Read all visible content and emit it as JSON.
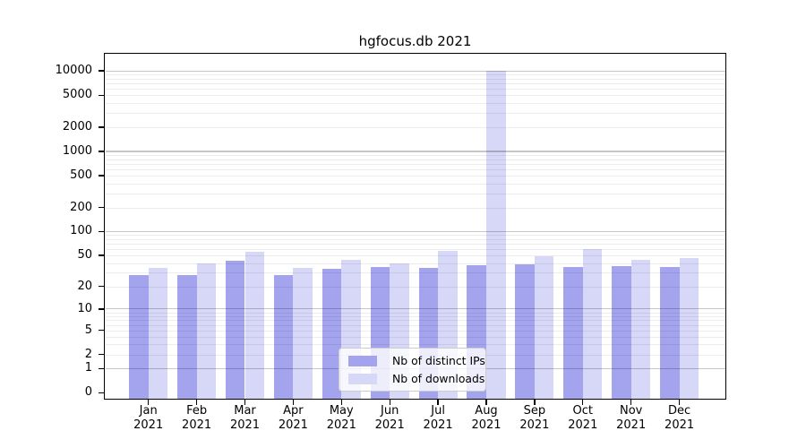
{
  "chart_data": {
    "type": "bar",
    "title": "hgfocus.db 2021",
    "year_label": "2021",
    "categories": [
      "Jan",
      "Feb",
      "Mar",
      "Apr",
      "May",
      "Jun",
      "Jul",
      "Aug",
      "Sep",
      "Oct",
      "Nov",
      "Dec"
    ],
    "series": [
      {
        "key": "distinct-ips",
        "name": "Nb of distinct IPs",
        "color": "#a3a3ee",
        "values": [
          28,
          28,
          43,
          28,
          34,
          36,
          35,
          38,
          39,
          36,
          37,
          36
        ]
      },
      {
        "key": "downloads",
        "name": "Nb of downloads",
        "color": "#d7d7f7",
        "values": [
          35,
          40,
          56,
          35,
          44,
          40,
          57,
          10000,
          49,
          60,
          44,
          46
        ]
      }
    ],
    "yscale": "symlog",
    "yticks": [
      0,
      1,
      2,
      5,
      10,
      20,
      50,
      100,
      200,
      500,
      1000,
      2000,
      5000,
      10000
    ],
    "ylim": [
      0,
      16300
    ],
    "xlabel": "",
    "ylabel": "",
    "grid": "horizontal, major and minor",
    "legend_position": "lower center",
    "axis_color": "#000000",
    "major_grid_color": "#c6c6c6",
    "minor_grid_color": "#ededed"
  }
}
